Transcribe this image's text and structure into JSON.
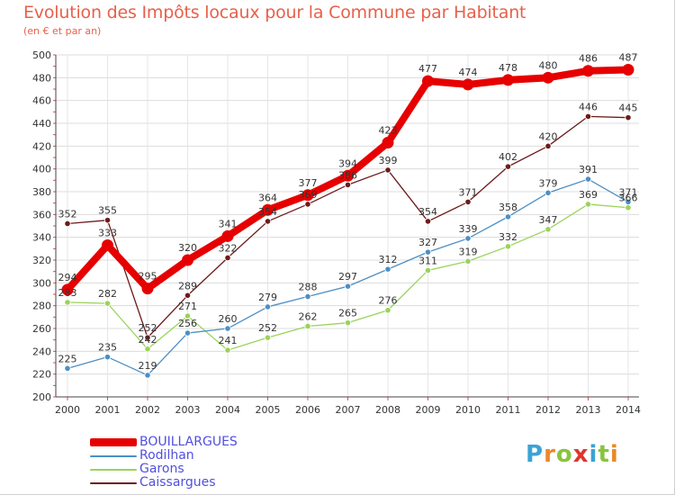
{
  "header": {
    "title": "Evolution des Impôts locaux pour la Commune par Habitant",
    "subtitle": "(en € et par an)"
  },
  "brand": {
    "letters": [
      "P",
      "r",
      "o",
      "x",
      "i",
      "t",
      "i"
    ],
    "colors": [
      "#3aa3d6",
      "#e9892a",
      "#8ac43f",
      "#e0352e",
      "#3aa3d6",
      "#8ac43f",
      "#e9892a"
    ]
  },
  "chart_data": {
    "type": "line",
    "title": "Evolution des Impôts locaux pour la Commune par Habitant",
    "subtitle": "(en € et par an)",
    "x": [
      "2000",
      "2001",
      "2002",
      "2003",
      "2004",
      "2005",
      "2006",
      "2007",
      "2008",
      "2009",
      "2010",
      "2011",
      "2012",
      "2013",
      "2014"
    ],
    "ylim": [
      200,
      500
    ],
    "yticks": [
      200,
      220,
      240,
      260,
      280,
      300,
      320,
      340,
      360,
      380,
      400,
      420,
      440,
      460,
      480,
      500
    ],
    "grid": true,
    "legend_position": "bottom-left",
    "series": [
      {
        "name": "BOUILLARGUES",
        "color": "#e60000",
        "values": [
          294,
          333,
          295,
          320,
          341,
          364,
          377,
          394,
          423,
          477,
          474,
          478,
          480,
          486,
          487
        ]
      },
      {
        "name": "Rodilhan",
        "color": "#4d8fc4",
        "values": [
          225,
          235,
          219,
          256,
          260,
          279,
          288,
          297,
          312,
          327,
          339,
          358,
          379,
          391,
          371
        ]
      },
      {
        "name": "Garons",
        "color": "#9ad35a",
        "values": [
          283,
          282,
          242,
          271,
          241,
          252,
          262,
          265,
          276,
          311,
          319,
          332,
          347,
          369,
          366
        ]
      },
      {
        "name": "Caissargues",
        "color": "#6e1a1a",
        "values": [
          352,
          355,
          252,
          289,
          322,
          354,
          369,
          386,
          399,
          354,
          371,
          402,
          420,
          446,
          445
        ]
      }
    ]
  }
}
